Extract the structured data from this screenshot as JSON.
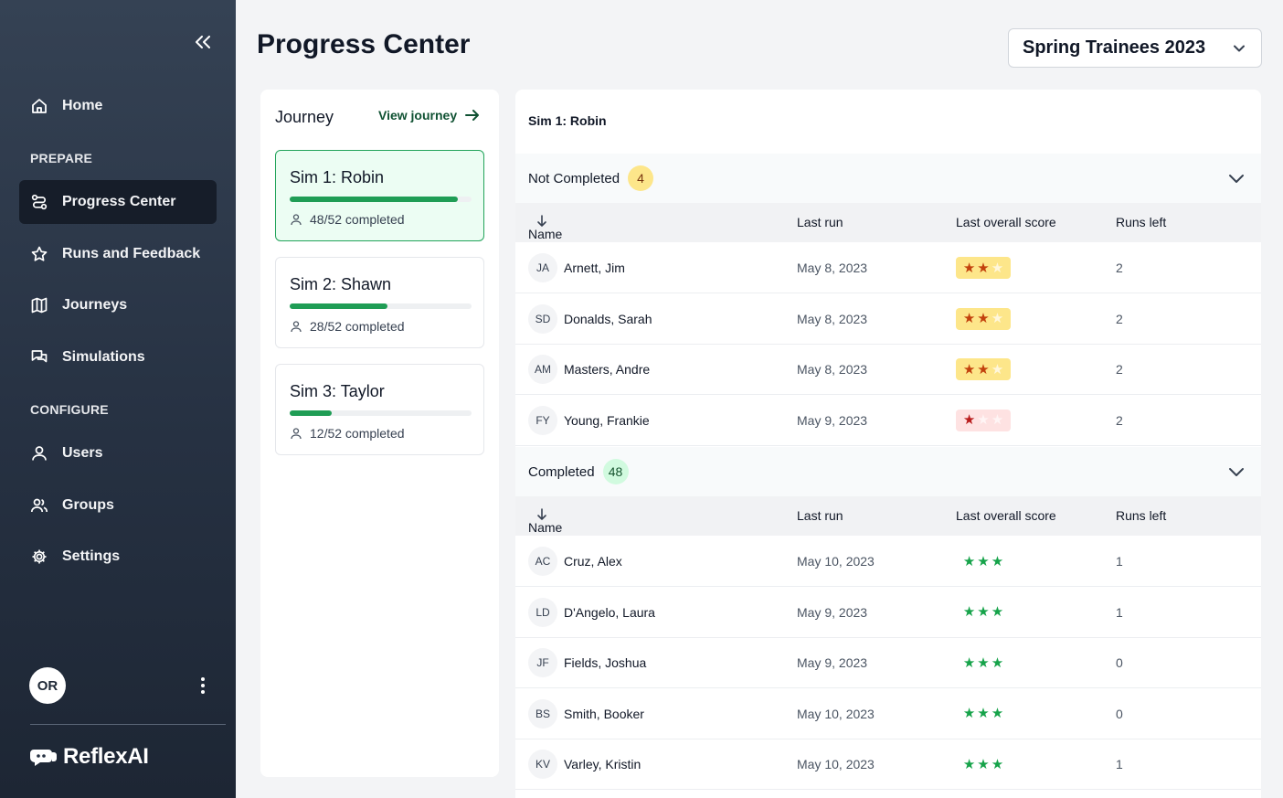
{
  "sidebar": {
    "collapse_icon": "double-chevron-left-icon",
    "home": {
      "label": "Home",
      "icon": "home-icon"
    },
    "section_prepare": "PREPARE",
    "prepare_items": [
      {
        "label": "Progress Center",
        "icon": "route-icon",
        "active": true
      },
      {
        "label": "Runs and Feedback",
        "icon": "star-icon"
      },
      {
        "label": "Journeys",
        "icon": "map-icon"
      },
      {
        "label": "Simulations",
        "icon": "chat-icon"
      }
    ],
    "section_configure": "CONFIGURE",
    "configure_items": [
      {
        "label": "Users",
        "icon": "user-icon"
      },
      {
        "label": "Groups",
        "icon": "users-icon"
      },
      {
        "label": "Settings",
        "icon": "gear-icon"
      }
    ],
    "user_initials": "OR",
    "brand": "ReflexAI"
  },
  "header": {
    "title": "Progress Center",
    "cohort": "Spring Trainees 2023"
  },
  "journey": {
    "title": "Journey",
    "view_link": "View journey",
    "sims": [
      {
        "name": "Sim 1: Robin",
        "completed_text": "48/52 completed",
        "progress": 0.923,
        "active": true
      },
      {
        "name": "Sim 2: Shawn",
        "completed_text": "28/52 completed",
        "progress": 0.538
      },
      {
        "name": "Sim 3: Taylor",
        "completed_text": "12/52 completed",
        "progress": 0.231
      }
    ]
  },
  "results": {
    "title": "Sim 1: Robin",
    "columns": {
      "name": "Name",
      "last_run": "Last run",
      "score": "Last overall score",
      "runs_left": "Runs left"
    },
    "not_completed": {
      "label": "Not Completed",
      "count": "4",
      "rows": [
        {
          "initials": "JA",
          "name": "Arnett, Jim",
          "last_run": "May 8, 2023",
          "stars": 2,
          "runs_left": "2"
        },
        {
          "initials": "SD",
          "name": "Donalds, Sarah",
          "last_run": "May 8, 2023",
          "stars": 2,
          "runs_left": "2"
        },
        {
          "initials": "AM",
          "name": "Masters, Andre",
          "last_run": "May 8, 2023",
          "stars": 2,
          "runs_left": "2"
        },
        {
          "initials": "FY",
          "name": "Young, Frankie",
          "last_run": "May 9, 2023",
          "stars": 1,
          "runs_left": "2"
        }
      ]
    },
    "completed": {
      "label": "Completed",
      "count": "48",
      "rows": [
        {
          "initials": "AC",
          "name": "Cruz, Alex",
          "last_run": "May 10, 2023",
          "stars": 3,
          "runs_left": "1"
        },
        {
          "initials": "LD",
          "name": "D'Angelo, Laura",
          "last_run": "May 9, 2023",
          "stars": 3,
          "runs_left": "1"
        },
        {
          "initials": "JF",
          "name": "Fields, Joshua",
          "last_run": "May 9, 2023",
          "stars": 3,
          "runs_left": "0"
        },
        {
          "initials": "BS",
          "name": "Smith, Booker",
          "last_run": "May 10, 2023",
          "stars": 3,
          "runs_left": "0"
        },
        {
          "initials": "KV",
          "name": "Varley, Kristin",
          "last_run": "May 10, 2023",
          "stars": 3,
          "runs_left": "1"
        }
      ]
    }
  }
}
